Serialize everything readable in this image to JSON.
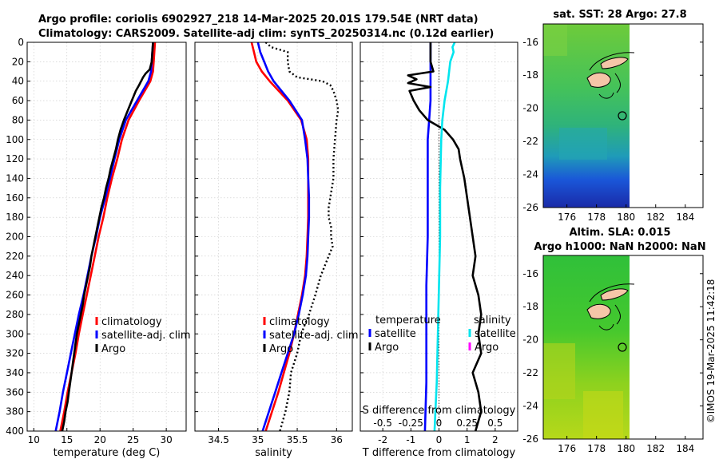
{
  "header": {
    "line1": "Argo profile: coriolis 6902927_218 14-Mar-2025 20.01S 179.54E (NRT data)",
    "line2": "Climatology: CARS2009. Satellite-adj clim: synTS_20250314.nc (0.12d earlier)"
  },
  "footer_credit": "©IMOS 19-Mar-2025 11:42:18",
  "colors": {
    "climatology": "#ff0000",
    "satellite": "#0000ff",
    "argo": "#000000",
    "salinity_satellite": "#00e5ee",
    "salinity_argo": "#ff00ff"
  },
  "depth_axis": {
    "ylim": [
      0,
      400
    ],
    "ticks": [
      0,
      20,
      40,
      60,
      80,
      100,
      120,
      140,
      160,
      180,
      200,
      220,
      240,
      260,
      280,
      300,
      320,
      340,
      360,
      380,
      400
    ]
  },
  "chart_data": [
    {
      "id": "temperature",
      "type": "line",
      "xlabel": "temperature (deg C)",
      "xlim": [
        9,
        33
      ],
      "xticks": [
        10,
        15,
        20,
        25,
        30
      ],
      "legend": [
        "climatology",
        "satellite-adj. clim",
        "Argo"
      ],
      "series": [
        {
          "name": "climatology",
          "color": "#ff0000",
          "depth": [
            0,
            10,
            20,
            30,
            40,
            60,
            80,
            100,
            120,
            140,
            160,
            180,
            200,
            220,
            240,
            260,
            280,
            300,
            320,
            340,
            360,
            380,
            400
          ],
          "values": [
            28.3,
            28.2,
            28.1,
            28.0,
            27.6,
            25.9,
            24.3,
            23.3,
            22.6,
            21.8,
            21.1,
            20.5,
            19.8,
            19.2,
            18.6,
            18.0,
            17.4,
            16.8,
            16.3,
            15.7,
            15.1,
            14.6,
            14.0
          ]
        },
        {
          "name": "satellite-adj. clim",
          "color": "#0000ff",
          "depth": [
            0,
            10,
            20,
            30,
            40,
            60,
            80,
            100,
            120,
            140,
            160,
            180,
            200,
            220,
            240,
            260,
            280,
            300,
            320,
            340,
            360,
            380,
            400
          ],
          "values": [
            28.0,
            27.9,
            27.8,
            27.7,
            27.3,
            25.6,
            23.9,
            22.9,
            22.2,
            21.5,
            20.8,
            20.0,
            19.4,
            18.7,
            18.1,
            17.5,
            16.8,
            16.2,
            15.6,
            15.0,
            14.4,
            13.9,
            13.3
          ]
        },
        {
          "name": "Argo",
          "color": "#000000",
          "depth": [
            0,
            10,
            20,
            28,
            32,
            36,
            40,
            44,
            50,
            60,
            70,
            80,
            90,
            100,
            110,
            120,
            130,
            140,
            150,
            160,
            170,
            180,
            190,
            200,
            210,
            220,
            230,
            240,
            250,
            260,
            270,
            280,
            290,
            300,
            310,
            320,
            330,
            340,
            350,
            360,
            370,
            380,
            390,
            400
          ],
          "values": [
            28.0,
            27.9,
            27.8,
            27.5,
            26.9,
            26.5,
            26.2,
            25.9,
            25.4,
            24.8,
            24.2,
            23.6,
            23.1,
            22.7,
            22.4,
            22.0,
            21.6,
            21.3,
            20.9,
            20.6,
            20.2,
            19.9,
            19.6,
            19.3,
            19.0,
            18.7,
            18.5,
            18.2,
            17.9,
            17.6,
            17.4,
            17.1,
            16.8,
            16.5,
            16.3,
            16.1,
            15.9,
            15.7,
            15.5,
            15.3,
            15.1,
            14.8,
            14.6,
            14.3
          ]
        }
      ]
    },
    {
      "id": "salinity",
      "type": "line",
      "xlabel": "salinity",
      "xlim": [
        34.2,
        36.2
      ],
      "xticks": [
        34.5,
        35,
        35.5,
        36
      ],
      "legend": [
        "climatology",
        "satellite-adj. clim",
        "Argo"
      ],
      "series": [
        {
          "name": "climatology",
          "color": "#ff0000",
          "depth": [
            0,
            10,
            20,
            30,
            40,
            60,
            80,
            100,
            120,
            140,
            160,
            180,
            200,
            220,
            240,
            260,
            280,
            300,
            320,
            340,
            360,
            380,
            400
          ],
          "values": [
            34.92,
            34.95,
            34.98,
            35.05,
            35.15,
            35.38,
            35.55,
            35.62,
            35.64,
            35.64,
            35.64,
            35.64,
            35.63,
            35.62,
            35.6,
            35.56,
            35.51,
            35.46,
            35.4,
            35.33,
            35.26,
            35.18,
            35.1
          ]
        },
        {
          "name": "satellite-adj. clim",
          "color": "#0000ff",
          "depth": [
            0,
            10,
            20,
            30,
            40,
            60,
            80,
            100,
            120,
            140,
            160,
            180,
            200,
            220,
            240,
            260,
            280,
            300,
            320,
            340,
            360,
            380,
            400
          ],
          "values": [
            35.0,
            35.03,
            35.08,
            35.13,
            35.2,
            35.4,
            35.56,
            35.6,
            35.63,
            35.64,
            35.65,
            35.65,
            35.64,
            35.63,
            35.61,
            35.57,
            35.52,
            35.46,
            35.38,
            35.3,
            35.22,
            35.14,
            35.06
          ]
        },
        {
          "name": "Argo",
          "color": "#000000",
          "dashed": true,
          "depth": [
            0,
            5,
            10,
            20,
            30,
            36,
            40,
            44,
            50,
            60,
            70,
            80,
            100,
            120,
            140,
            160,
            170,
            180,
            190,
            200,
            210,
            220,
            240,
            260,
            280,
            300,
            320,
            340,
            360,
            380,
            400
          ],
          "values": [
            35.1,
            35.17,
            35.38,
            35.38,
            35.4,
            35.5,
            35.82,
            35.92,
            35.96,
            36.0,
            36.02,
            36.0,
            35.98,
            35.96,
            35.96,
            35.92,
            35.9,
            35.9,
            35.93,
            35.93,
            35.95,
            35.9,
            35.8,
            35.73,
            35.65,
            35.55,
            35.5,
            35.42,
            35.4,
            35.35,
            35.28
          ]
        }
      ]
    },
    {
      "id": "difference",
      "type": "line",
      "xlabel": "T difference from climatology",
      "xlim": [
        -2.8,
        2.8
      ],
      "xticks": [
        -2,
        -1,
        0,
        1,
        2
      ],
      "top_label": "S difference from climatology",
      "top_xticks": [
        -0.5,
        -0.25,
        0,
        0.25,
        0.5
      ],
      "legend_temperature_title": "temperature",
      "legend_salinity_title": "salinity",
      "legend": [
        "satellite",
        "Argo",
        "satellite",
        "Argo"
      ],
      "series": [
        {
          "name": "T satellite",
          "color": "#0000ff",
          "depth": [
            0,
            20,
            40,
            60,
            80,
            100,
            150,
            200,
            250,
            300,
            350,
            400
          ],
          "values": [
            -0.3,
            -0.3,
            -0.3,
            -0.3,
            -0.35,
            -0.4,
            -0.4,
            -0.4,
            -0.45,
            -0.45,
            -0.45,
            -0.5
          ]
        },
        {
          "name": "T Argo",
          "color": "#000000",
          "depth": [
            0,
            10,
            20,
            30,
            34,
            38,
            42,
            46,
            50,
            60,
            70,
            80,
            90,
            100,
            110,
            120,
            140,
            160,
            180,
            200,
            220,
            240,
            260,
            280,
            300,
            320,
            340,
            360,
            380,
            400
          ],
          "values": [
            -0.3,
            -0.3,
            -0.3,
            -0.2,
            -1.1,
            -0.8,
            -1.1,
            -0.3,
            -1.05,
            -0.9,
            -0.7,
            -0.4,
            0.2,
            0.5,
            0.7,
            0.75,
            0.9,
            1.0,
            1.1,
            1.2,
            1.3,
            1.2,
            1.4,
            1.5,
            1.4,
            1.5,
            1.2,
            1.4,
            1.5,
            1.3
          ]
        },
        {
          "name": "S satellite",
          "color": "#00e5ee",
          "depth": [
            0,
            5,
            10,
            20,
            40,
            60,
            80,
            100,
            150,
            200,
            250,
            300,
            350,
            400
          ],
          "values": [
            0.14,
            0.12,
            0.13,
            0.1,
            0.08,
            0.05,
            0.03,
            0.02,
            0.01,
            0.01,
            0.0,
            -0.01,
            -0.02,
            -0.04
          ]
        },
        {
          "name": "S Argo",
          "color": "#ff00ff",
          "depth": [],
          "values": []
        }
      ]
    }
  ],
  "maps": {
    "sst": {
      "title": "sat. SST: 28 Argo: 27.8",
      "xticks": [
        176,
        178,
        180,
        182,
        184
      ],
      "yticks": [
        -16,
        -18,
        -20,
        -22,
        -24,
        -26
      ],
      "float_position": {
        "lon": 179.54,
        "lat": -20.01
      }
    },
    "sla": {
      "title_line1": "Altim. SLA: 0.015",
      "title_line2": "Argo h1000: NaN h2000: NaN",
      "xticks": [
        176,
        178,
        180,
        182,
        184
      ],
      "yticks": [
        -16,
        -18,
        -20,
        -22,
        -24,
        -26
      ],
      "float_position": {
        "lon": 179.54,
        "lat": -20.01
      }
    }
  }
}
